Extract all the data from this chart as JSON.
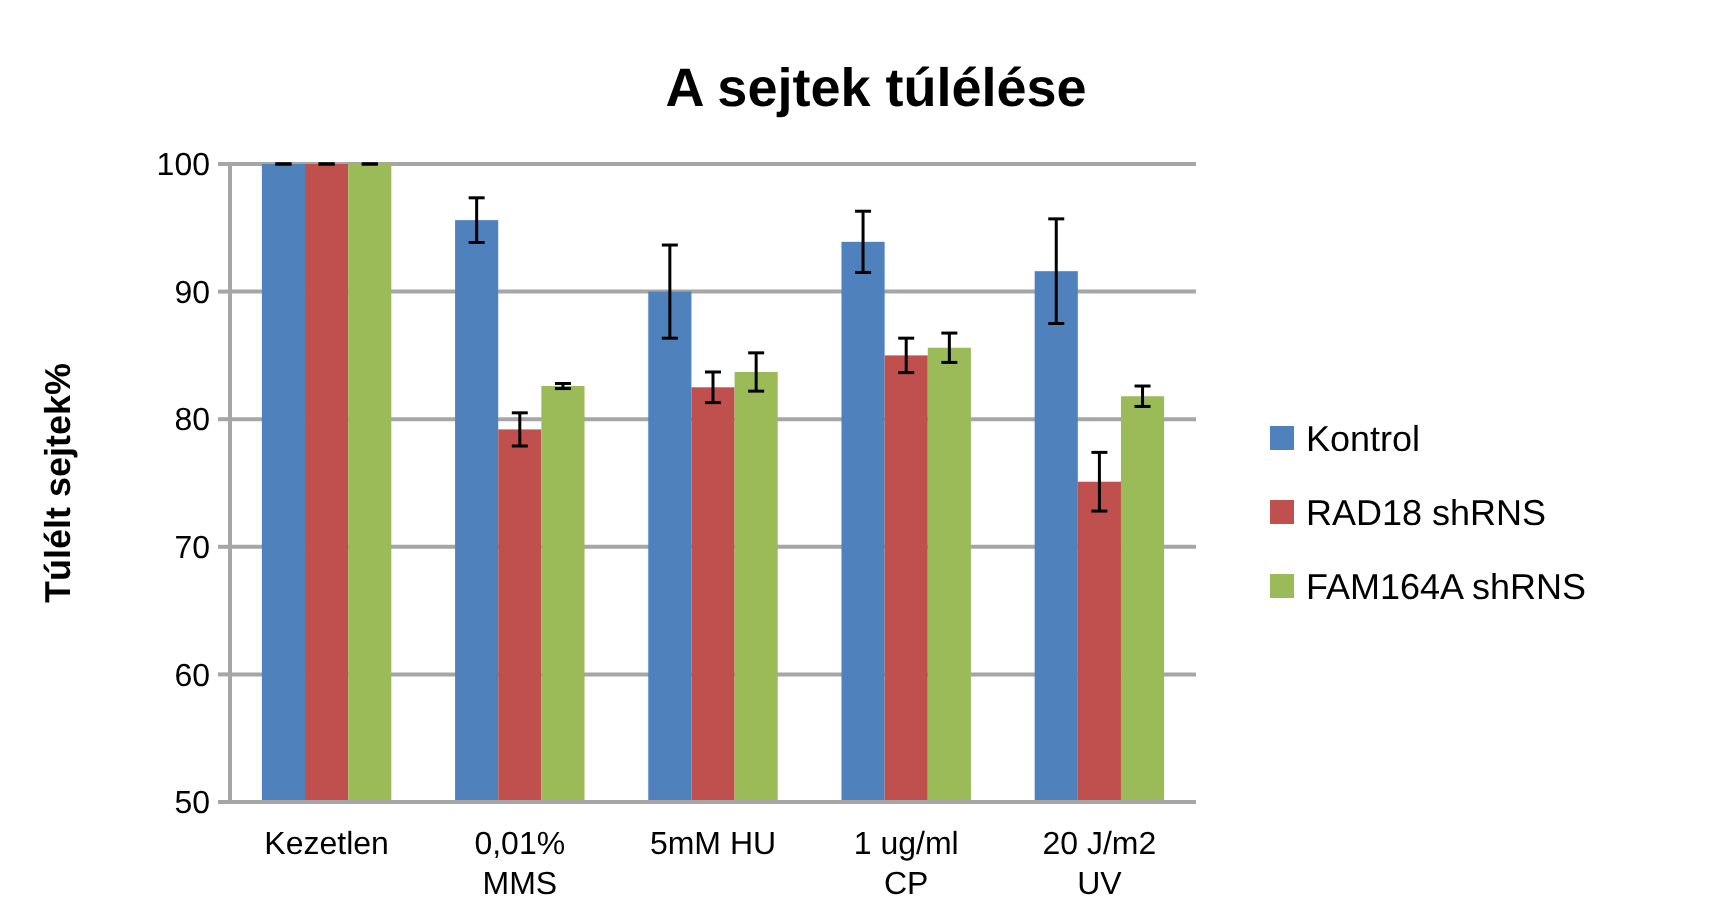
{
  "chart_data": {
    "type": "bar",
    "title": "A sejtek túlélése",
    "ylabel": "Túlélt sejtek%",
    "categories": [
      "Kezetlen",
      "0,01% MMS",
      "5mM HU",
      "1 ug/ml CP",
      "20 J/m2 UV"
    ],
    "series": [
      {
        "name": "Kontrol",
        "color": "#4f81bd",
        "values": [
          100,
          95.6,
          90,
          93.9,
          91.6
        ],
        "errors": [
          0,
          1.75,
          3.65,
          2.4,
          4.1
        ]
      },
      {
        "name": "RAD18 shRNS",
        "color": "#c0504d",
        "values": [
          100,
          79.2,
          82.5,
          85,
          75.1
        ],
        "errors": [
          0,
          1.3,
          1.2,
          1.35,
          2.3
        ]
      },
      {
        "name": "FAM164A shRNS",
        "color": "#9bbb59",
        "values": [
          100,
          82.6,
          83.7,
          85.6,
          81.8
        ],
        "errors": [
          0,
          0.2,
          1.5,
          1.15,
          0.8
        ]
      }
    ],
    "ylim": [
      50,
      100
    ],
    "yticks": [
      50,
      60,
      70,
      80,
      90,
      100
    ],
    "grid": "y",
    "legend": "right"
  }
}
